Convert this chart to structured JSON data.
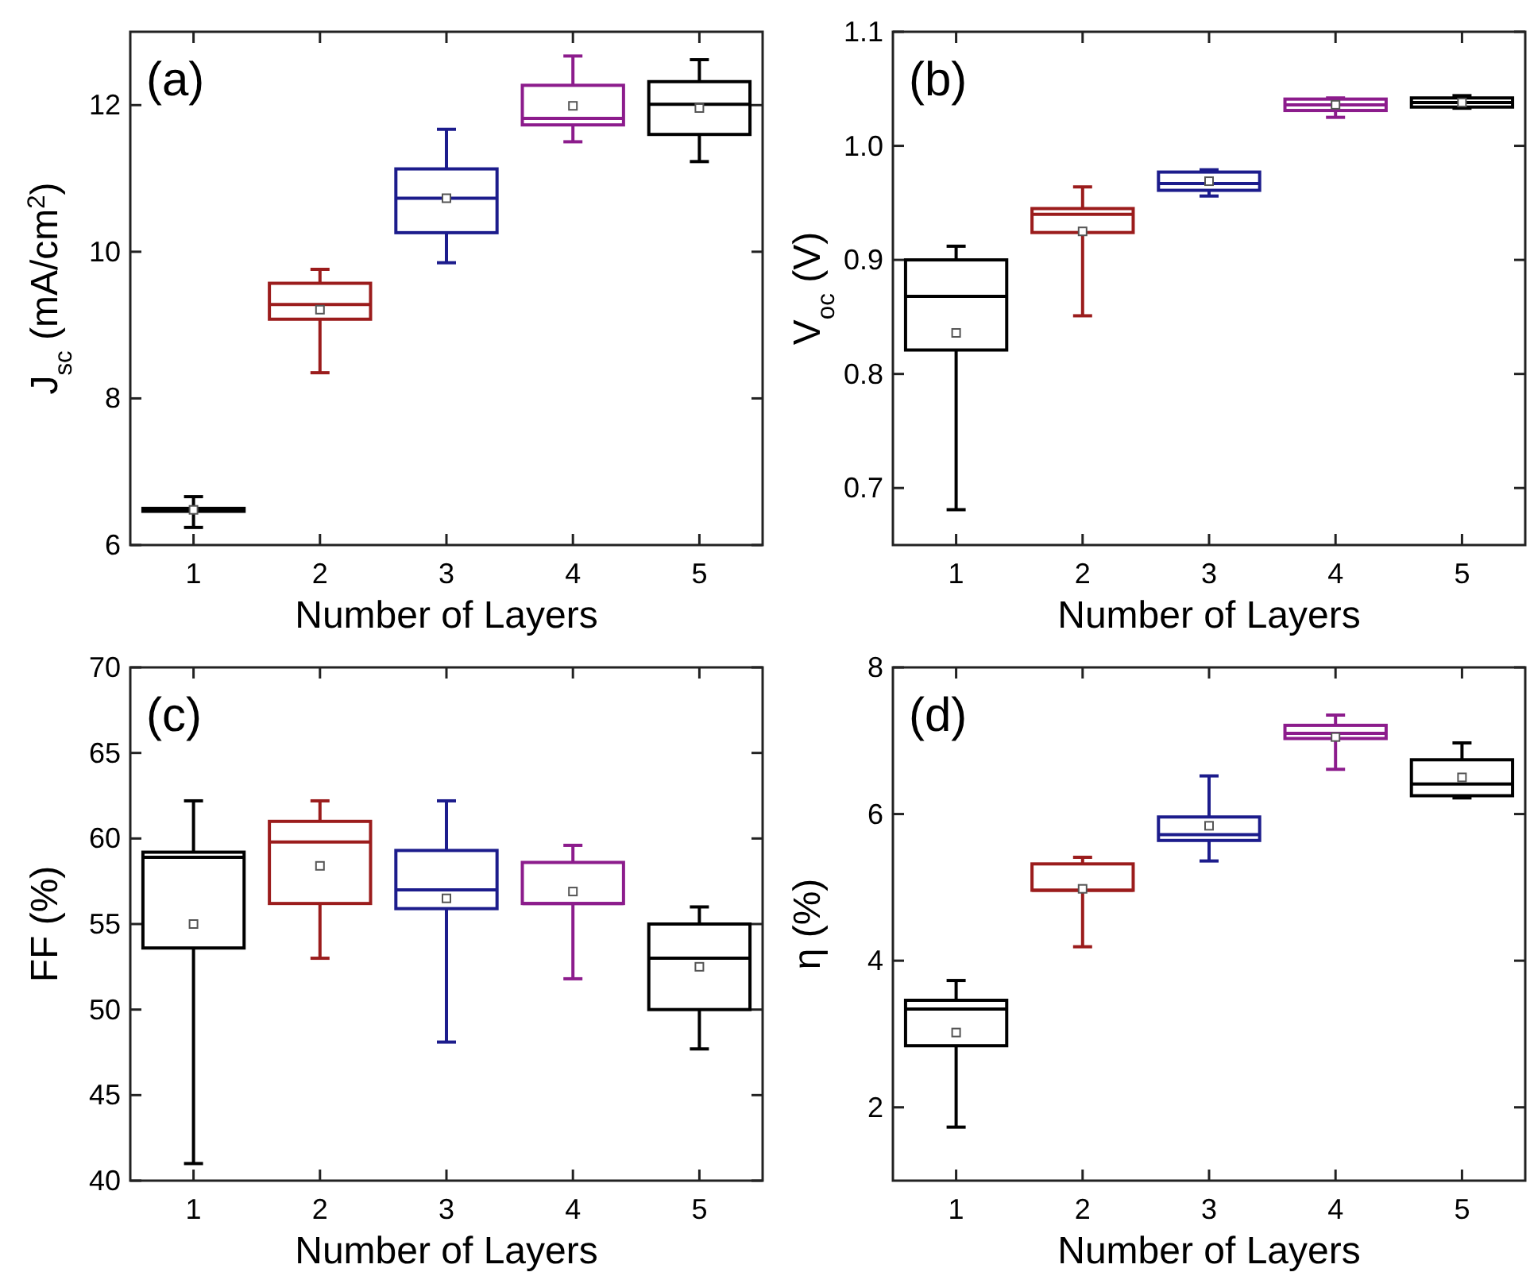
{
  "chart_data": [
    {
      "type": "box",
      "x": [
        1,
        2,
        3,
        4,
        5
      ],
      "xlim": [
        0.5,
        5.5
      ],
      "xticks": [
        1,
        2,
        3,
        4,
        5
      ],
      "ylim": [
        6,
        13
      ],
      "yticks": [
        6,
        8,
        10,
        12
      ],
      "xlabel": "Number of Layers",
      "ylabel": "J$_{sc}$ (mA/cm$^{2}$)",
      "annotations": [
        "(a)"
      ],
      "colors": [
        "#000000",
        "#9b1c1c",
        "#1c1c8c",
        "#8c1c8c",
        "#000000"
      ],
      "boxes": [
        {
          "low": 6.24,
          "q1": 6.46,
          "median": 6.48,
          "q3": 6.5,
          "high": 6.66,
          "mean": 6.48
        },
        {
          "low": 8.35,
          "q1": 9.08,
          "median": 9.28,
          "q3": 9.57,
          "high": 9.76,
          "mean": 9.21
        },
        {
          "low": 9.85,
          "q1": 10.26,
          "median": 10.73,
          "q3": 11.13,
          "high": 11.67,
          "mean": 10.73
        },
        {
          "low": 11.5,
          "q1": 11.73,
          "median": 11.82,
          "q3": 12.27,
          "high": 12.67,
          "mean": 11.99
        },
        {
          "low": 11.23,
          "q1": 11.6,
          "median": 12.01,
          "q3": 12.32,
          "high": 12.62,
          "mean": 11.96
        }
      ]
    },
    {
      "type": "box",
      "x": [
        1,
        2,
        3,
        4,
        5
      ],
      "xlim": [
        0.5,
        5.5
      ],
      "xticks": [
        1,
        2,
        3,
        4,
        5
      ],
      "ylim": [
        0.65,
        1.1
      ],
      "yticks": [
        {
          "value": 0.7,
          "label": "0.7"
        },
        {
          "value": 0.8,
          "label": "0.8"
        },
        {
          "value": 0.9,
          "label": "0.9"
        },
        {
          "value": 1.0,
          "label": "1.0"
        },
        {
          "value": 1.1,
          "label": "1.1"
        }
      ],
      "xlabel": "Number of Layers",
      "ylabel": "V$_{oc}$ (V)",
      "annotations": [
        "(b)"
      ],
      "colors": [
        "#000000",
        "#9b1c1c",
        "#1c1c8c",
        "#8c1c8c",
        "#000000"
      ],
      "boxes": [
        {
          "low": 0.681,
          "q1": 0.821,
          "median": 0.868,
          "q3": 0.9,
          "high": 0.912,
          "mean": 0.836
        },
        {
          "low": 0.851,
          "q1": 0.924,
          "median": 0.94,
          "q3": 0.945,
          "high": 0.964,
          "mean": 0.925
        },
        {
          "low": 0.956,
          "q1": 0.961,
          "median": 0.967,
          "q3": 0.977,
          "high": 0.979,
          "mean": 0.969
        },
        {
          "low": 1.025,
          "q1": 1.031,
          "median": 1.036,
          "q3": 1.041,
          "high": 1.042,
          "mean": 1.036
        },
        {
          "low": 1.033,
          "q1": 1.034,
          "median": 1.038,
          "q3": 1.042,
          "high": 1.044,
          "mean": 1.038
        }
      ]
    },
    {
      "type": "box",
      "x": [
        1,
        2,
        3,
        4,
        5
      ],
      "xlim": [
        0.5,
        5.5
      ],
      "xticks": [
        1,
        2,
        3,
        4,
        5
      ],
      "ylim": [
        40,
        70
      ],
      "yticks": [
        40,
        45,
        50,
        55,
        60,
        65,
        70
      ],
      "xlabel": "Number of Layers",
      "ylabel": "FF (%)",
      "annotations": [
        "(c)"
      ],
      "colors": [
        "#000000",
        "#9b1c1c",
        "#1c1c8c",
        "#8c1c8c",
        "#000000"
      ],
      "boxes": [
        {
          "low": 41.0,
          "q1": 53.6,
          "median": 58.9,
          "q3": 59.2,
          "high": 62.2,
          "mean": 55.0
        },
        {
          "low": 53.0,
          "q1": 56.2,
          "median": 59.8,
          "q3": 61.0,
          "high": 62.2,
          "mean": 58.4
        },
        {
          "low": 48.1,
          "q1": 55.9,
          "median": 57.0,
          "q3": 59.3,
          "high": 62.2,
          "mean": 56.5
        },
        {
          "low": 51.8,
          "q1": 56.2,
          "median": 56.2,
          "q3": 58.6,
          "high": 59.6,
          "mean": 56.9
        },
        {
          "low": 47.7,
          "q1": 50.0,
          "median": 53.0,
          "q3": 55.0,
          "high": 56.0,
          "mean": 52.5
        }
      ]
    },
    {
      "type": "box",
      "x": [
        1,
        2,
        3,
        4,
        5
      ],
      "xlim": [
        0.5,
        5.5
      ],
      "xticks": [
        1,
        2,
        3,
        4,
        5
      ],
      "ylim": [
        1,
        8
      ],
      "yticks": [
        2,
        4,
        6,
        8
      ],
      "xlabel": "Number of Layers",
      "ylabel": "η (%)",
      "annotations": [
        "(d)"
      ],
      "colors": [
        "#000000",
        "#9b1c1c",
        "#1c1c8c",
        "#8c1c8c",
        "#000000"
      ],
      "boxes": [
        {
          "low": 1.73,
          "q1": 2.84,
          "median": 3.34,
          "q3": 3.46,
          "high": 3.73,
          "mean": 3.02
        },
        {
          "low": 4.19,
          "q1": 4.96,
          "median": 4.96,
          "q3": 5.32,
          "high": 5.41,
          "mean": 4.98
        },
        {
          "low": 5.36,
          "q1": 5.64,
          "median": 5.72,
          "q3": 5.96,
          "high": 6.52,
          "mean": 5.84
        },
        {
          "low": 6.61,
          "q1": 7.03,
          "median": 7.1,
          "q3": 7.21,
          "high": 7.35,
          "mean": 7.05
        },
        {
          "low": 6.22,
          "q1": 6.25,
          "median": 6.41,
          "q3": 6.74,
          "high": 6.97,
          "mean": 6.5
        }
      ]
    }
  ]
}
